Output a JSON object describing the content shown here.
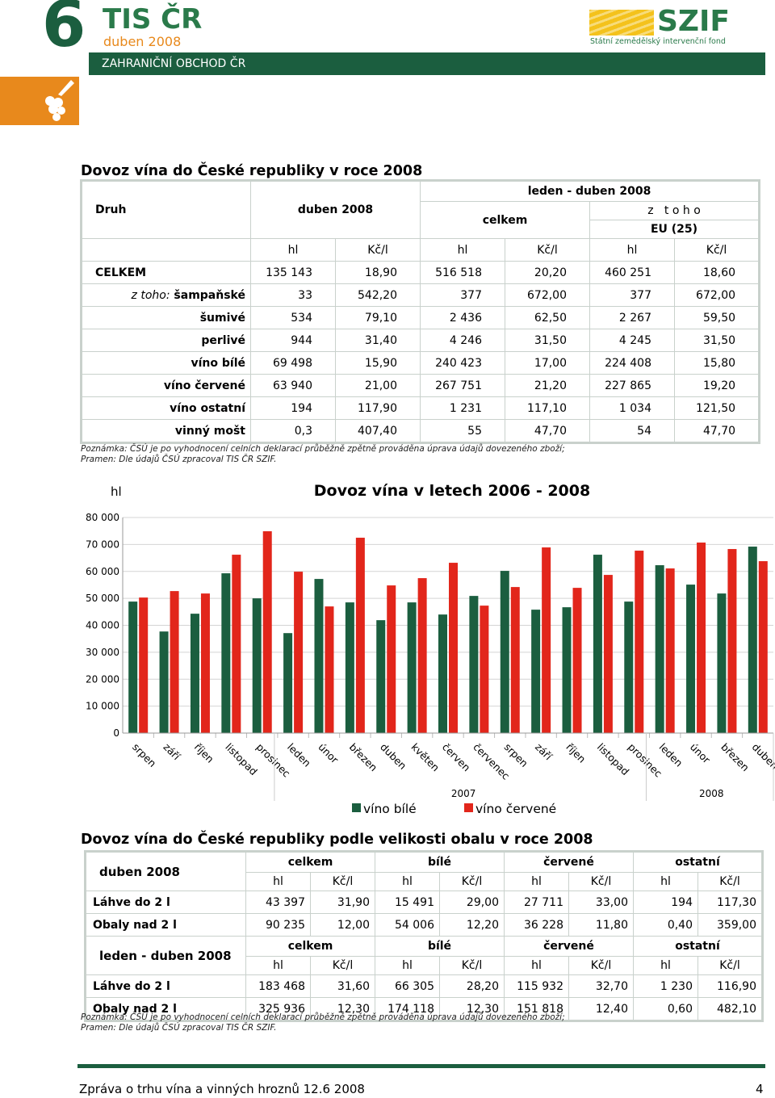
{
  "header": {
    "number": "6",
    "brand": "TIS ČR",
    "date": "duben 2008",
    "section": "ZAHRANIČNÍ OBCHOD ČR",
    "logo": "SZIF",
    "logo_sub": "Státní zemědělský intervenční fond"
  },
  "table1": {
    "title": "Dovoz vína do České republiky v roce 2008",
    "headers": {
      "druh": "Druh",
      "month": "duben 2008",
      "period": "leden - duben 2008",
      "total": "celkem",
      "of_which": "z   t o h o",
      "eu": "EU (25)",
      "units": [
        "hl",
        "Kč/l",
        "hl",
        "Kč/l",
        "hl",
        "Kč/l"
      ]
    },
    "rows": [
      {
        "label": "CELKEM",
        "values": [
          "135 143",
          "18,90",
          "516 518",
          "20,20",
          "460 251",
          "18,60"
        ]
      },
      {
        "prefix": "z toho:",
        "label": "šampaňské",
        "values": [
          "33",
          "542,20",
          "377",
          "672,00",
          "377",
          "672,00"
        ]
      },
      {
        "label": "šumivé",
        "values": [
          "534",
          "79,10",
          "2 436",
          "62,50",
          "2 267",
          "59,50"
        ]
      },
      {
        "label": "perlivé",
        "values": [
          "944",
          "31,40",
          "4 246",
          "31,50",
          "4 245",
          "31,50"
        ]
      },
      {
        "label": "víno bílé",
        "values": [
          "69 498",
          "15,90",
          "240 423",
          "17,00",
          "224 408",
          "15,80"
        ]
      },
      {
        "label": "víno červené",
        "values": [
          "63 940",
          "21,00",
          "267 751",
          "21,20",
          "227 865",
          "19,20"
        ]
      },
      {
        "label": "víno ostatní",
        "values": [
          "194",
          "117,90",
          "1 231",
          "117,10",
          "1 034",
          "121,50"
        ]
      },
      {
        "label": "vinný mošt",
        "values": [
          "0,3",
          "407,40",
          "55",
          "47,70",
          "54",
          "47,70"
        ]
      }
    ],
    "note": "Poznámka: ČSÚ je po vyhodnocení celních deklarací průběžně zpětně prováděna úprava údajů dovezeného zboží;",
    "source": "Pramen: Dle údajů ČSÚ zpracoval TIS ČR SZIF."
  },
  "chart_data": {
    "type": "bar",
    "title": "Dovoz vína v letech 2006 - 2008",
    "y_label": "hl",
    "categories": [
      "srpen",
      "září",
      "říjen",
      "listopad",
      "prosinec",
      "leden",
      "únor",
      "březen",
      "duben",
      "květen",
      "červen",
      "červenec",
      "srpen",
      "září",
      "říjen",
      "listopad",
      "prosinec",
      "leden",
      "únor",
      "březen",
      "duben"
    ],
    "year_labels": [
      "2007",
      "2008"
    ],
    "series": [
      {
        "name": "víno bílé",
        "color": "#1b5e3f",
        "values": [
          48800,
          37700,
          44300,
          59300,
          50000,
          37100,
          57200,
          48500,
          41900,
          48500,
          44000,
          50900,
          60200,
          45800,
          46700,
          66200,
          48800,
          62300,
          55100,
          51800,
          69200
        ]
      },
      {
        "name": "víno červené",
        "color": "#e2261b",
        "values": [
          50300,
          52700,
          51800,
          66200,
          74900,
          59900,
          47000,
          72500,
          54800,
          57500,
          63200,
          47300,
          54200,
          68900,
          53900,
          58700,
          67700,
          61100,
          70700,
          68300,
          63800
        ]
      }
    ],
    "ylim": [
      0,
      80000
    ],
    "yticks": [
      0,
      {
        "value": 10000,
        "label": "10 000"
      },
      {
        "value": 20000,
        "label": "20 000"
      },
      {
        "value": 30000,
        "label": "30 000"
      },
      {
        "value": 40000,
        "label": "40 000"
      },
      {
        "value": 50000,
        "label": "50 000"
      },
      {
        "value": 60000,
        "label": "60 000"
      },
      {
        "value": 70000,
        "label": "70 000"
      },
      {
        "value": 80000,
        "label": "80 000"
      }
    ],
    "grid": true,
    "legend": "bottom"
  },
  "table2": {
    "title": "Dovoz vína do České republiky podle velikosti obalu v roce 2008",
    "blocks": [
      {
        "period": "duben 2008",
        "groups": [
          "celkem",
          "bílé",
          "červené",
          "ostatní"
        ],
        "units": [
          "hl",
          "Kč/l",
          "hl",
          "Kč/l",
          "hl",
          "Kč/l",
          "hl",
          "Kč/l"
        ],
        "rows": [
          {
            "label": "Láhve do 2 l",
            "values": [
              "43 397",
              "31,90",
              "15 491",
              "29,00",
              "27 711",
              "33,00",
              "194",
              "117,30"
            ]
          },
          {
            "label": "Obaly nad 2 l",
            "values": [
              "90 235",
              "12,00",
              "54 006",
              "12,20",
              "36 228",
              "11,80",
              "0,40",
              "359,00"
            ]
          }
        ]
      },
      {
        "period": "leden - duben 2008",
        "groups": [
          "celkem",
          "bílé",
          "červené",
          "ostatní"
        ],
        "units": [
          "hl",
          "Kč/l",
          "hl",
          "Kč/l",
          "hl",
          "Kč/l",
          "hl",
          "Kč/l"
        ],
        "rows": [
          {
            "label": "Láhve do 2 l",
            "values": [
              "183 468",
              "31,60",
              "66 305",
              "28,20",
              "115 932",
              "32,70",
              "1 230",
              "116,90"
            ]
          },
          {
            "label": "Obaly nad 2 l",
            "values": [
              "325 936",
              "12,30",
              "174 118",
              "12,30",
              "151 818",
              "12,40",
              "0,60",
              "482,10"
            ]
          }
        ]
      }
    ],
    "note": "Poznámka: ČSÚ je po vyhodnocení celních deklarací průběžně zpětně prováděna úprava údajů dovezeného zboží;",
    "source": "Pramen: Dle údajů ČSÚ zpracoval TIS ČR SZIF."
  },
  "footer": {
    "text": "Zpráva o trhu vína a vinných hroznů 12.6 2008",
    "page": "4"
  }
}
